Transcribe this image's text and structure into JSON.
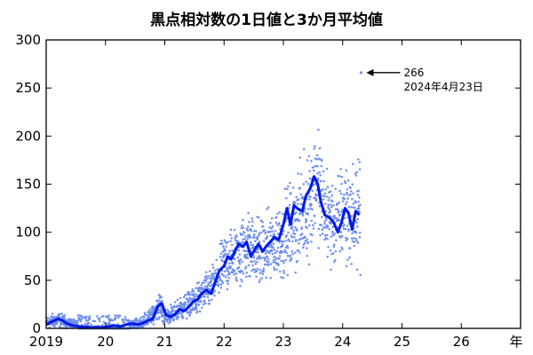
{
  "chart_data": {
    "type": "scatter",
    "title": "黒点相対数の1日値と3か月平均値",
    "xlabel": "年",
    "ylabel": "",
    "x_range": [
      2019.0,
      2027.0
    ],
    "ylim": [
      0,
      300
    ],
    "x_ticks": [
      {
        "value": 2019,
        "label": "2019"
      },
      {
        "value": 2020,
        "label": "20"
      },
      {
        "value": 2021,
        "label": "21"
      },
      {
        "value": 2022,
        "label": "22"
      },
      {
        "value": 2023,
        "label": "23"
      },
      {
        "value": 2024,
        "label": "24"
      },
      {
        "value": 2025,
        "label": "25"
      },
      {
        "value": 2026,
        "label": "26"
      }
    ],
    "y_ticks": [
      0,
      50,
      100,
      150,
      200,
      250,
      300
    ],
    "grid": false,
    "series": [
      {
        "name": "",
        "kind": "daily-scatter",
        "color": "#6f8ff0",
        "trend_x": [
          2019.0,
          2019.2,
          2019.4,
          2019.6,
          2019.8,
          2020.0,
          2020.2,
          2020.4,
          2020.6,
          2020.8,
          2020.9,
          2021.0,
          2021.1,
          2021.3,
          2021.5,
          2021.7,
          2021.9,
          2022.0,
          2022.2,
          2022.4,
          2022.6,
          2022.8,
          2023.0,
          2023.2,
          2023.4,
          2023.55,
          2023.7,
          2023.9,
          2024.0,
          2024.15,
          2024.3
        ],
        "trend_y": [
          6,
          9,
          5,
          2,
          1,
          1,
          2,
          3,
          5,
          14,
          25,
          12,
          14,
          22,
          28,
          38,
          52,
          68,
          75,
          88,
          78,
          85,
          95,
          110,
          125,
          155,
          120,
          105,
          125,
          115,
          120
        ]
      },
      {
        "name": "",
        "kind": "3-month-mean",
        "color": "#0019e6",
        "x": [
          2019.0,
          2019.1,
          2019.2,
          2019.28,
          2019.35,
          2019.45,
          2019.55,
          2019.65,
          2019.75,
          2019.85,
          2019.95,
          2020.05,
          2020.15,
          2020.25,
          2020.35,
          2020.45,
          2020.55,
          2020.65,
          2020.72,
          2020.8,
          2020.88,
          2020.95,
          2021.02,
          2021.1,
          2021.18,
          2021.25,
          2021.32,
          2021.4,
          2021.48,
          2021.55,
          2021.62,
          2021.7,
          2021.78,
          2021.85,
          2021.92,
          2022.0,
          2022.06,
          2022.12,
          2022.18,
          2022.25,
          2022.32,
          2022.38,
          2022.45,
          2022.52,
          2022.58,
          2022.65,
          2022.72,
          2022.78,
          2022.85,
          2022.92,
          2023.0,
          2023.06,
          2023.12,
          2023.18,
          2023.25,
          2023.32,
          2023.38,
          2023.45,
          2023.52,
          2023.58,
          2023.63,
          2023.7,
          2023.78,
          2023.85,
          2023.92,
          2023.98,
          2024.04,
          2024.1,
          2024.16,
          2024.22,
          2024.28
        ],
        "y": [
          4,
          7,
          10,
          8,
          5,
          3,
          2,
          1.5,
          1,
          1,
          1,
          2,
          3,
          2,
          4,
          5,
          4,
          6,
          8,
          10,
          23,
          26,
          14,
          12,
          15,
          20,
          18,
          22,
          28,
          30,
          36,
          40,
          36,
          48,
          60,
          65,
          75,
          72,
          80,
          88,
          85,
          90,
          75,
          82,
          88,
          80,
          86,
          90,
          95,
          92,
          108,
          125,
          108,
          128,
          124,
          122,
          138,
          145,
          158,
          150,
          132,
          118,
          115,
          110,
          100,
          110,
          125,
          120,
          103,
          122,
          118
        ]
      }
    ],
    "annotations": [
      {
        "x": 2024.31,
        "y": 266,
        "text": "266",
        "subtext": "2024年4月23日"
      }
    ]
  }
}
